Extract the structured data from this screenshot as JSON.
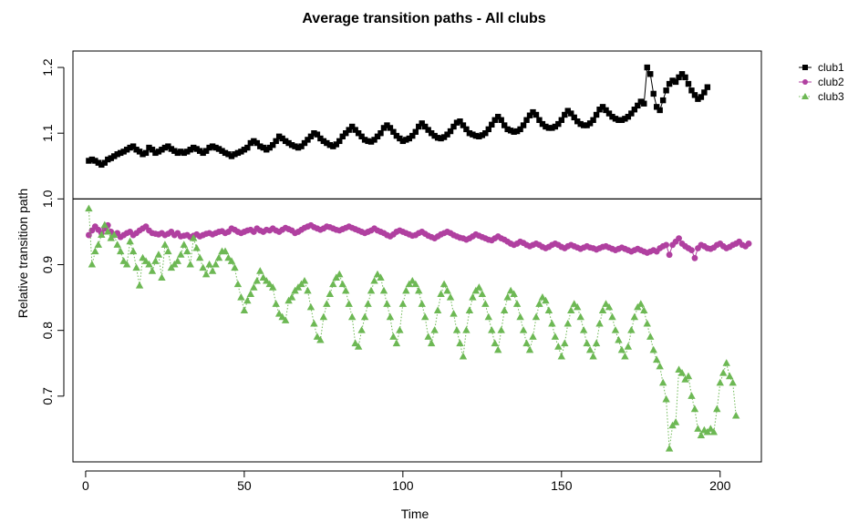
{
  "chart_data": {
    "type": "line",
    "title": "Average transition paths - All clubs",
    "xlabel": "Time",
    "ylabel": "Relative transition path",
    "xlim": [
      -4,
      213
    ],
    "ylim": [
      0.6,
      1.225
    ],
    "x_ticks": [
      0,
      50,
      100,
      150,
      200
    ],
    "y_ticks": [
      0.7,
      0.8,
      0.9,
      1.0,
      1.1,
      1.2
    ],
    "x_tick_labels": [
      "0",
      "50",
      "100",
      "150",
      "200"
    ],
    "y_tick_labels": [
      "0.7",
      "0.8",
      "0.9",
      "1.0",
      "1.1",
      "1.2"
    ],
    "reference_line": 1.0,
    "grid": false,
    "legend_position": "top-right",
    "series": [
      {
        "name": "club1",
        "color": "#000000",
        "marker": "square",
        "x_start": 1,
        "x_step": 1,
        "values": [
          1.058,
          1.06,
          1.058,
          1.055,
          1.052,
          1.055,
          1.06,
          1.062,
          1.065,
          1.068,
          1.07,
          1.072,
          1.075,
          1.078,
          1.08,
          1.075,
          1.072,
          1.068,
          1.07,
          1.078,
          1.075,
          1.07,
          1.072,
          1.075,
          1.078,
          1.08,
          1.076,
          1.073,
          1.07,
          1.072,
          1.07,
          1.072,
          1.075,
          1.078,
          1.076,
          1.073,
          1.07,
          1.073,
          1.078,
          1.08,
          1.078,
          1.076,
          1.073,
          1.07,
          1.068,
          1.065,
          1.068,
          1.07,
          1.072,
          1.075,
          1.078,
          1.085,
          1.088,
          1.085,
          1.08,
          1.078,
          1.075,
          1.078,
          1.082,
          1.088,
          1.095,
          1.092,
          1.088,
          1.085,
          1.082,
          1.08,
          1.078,
          1.08,
          1.085,
          1.09,
          1.095,
          1.1,
          1.098,
          1.092,
          1.088,
          1.085,
          1.082,
          1.08,
          1.083,
          1.088,
          1.095,
          1.1,
          1.105,
          1.11,
          1.105,
          1.1,
          1.095,
          1.09,
          1.088,
          1.087,
          1.09,
          1.095,
          1.1,
          1.108,
          1.112,
          1.108,
          1.102,
          1.096,
          1.092,
          1.088,
          1.09,
          1.092,
          1.096,
          1.102,
          1.11,
          1.115,
          1.11,
          1.105,
          1.1,
          1.096,
          1.093,
          1.092,
          1.094,
          1.098,
          1.103,
          1.11,
          1.116,
          1.118,
          1.112,
          1.106,
          1.1,
          1.098,
          1.096,
          1.095,
          1.097,
          1.1,
          1.106,
          1.113,
          1.12,
          1.125,
          1.12,
          1.112,
          1.106,
          1.104,
          1.102,
          1.103,
          1.106,
          1.112,
          1.12,
          1.127,
          1.132,
          1.128,
          1.12,
          1.114,
          1.11,
          1.108,
          1.108,
          1.11,
          1.114,
          1.12,
          1.128,
          1.134,
          1.13,
          1.124,
          1.118,
          1.114,
          1.112,
          1.112,
          1.115,
          1.12,
          1.128,
          1.136,
          1.14,
          1.135,
          1.13,
          1.125,
          1.122,
          1.12,
          1.12,
          1.122,
          1.125,
          1.13,
          1.136,
          1.142,
          1.148,
          1.145,
          1.2,
          1.19,
          1.16,
          1.14,
          1.135,
          1.15,
          1.165,
          1.175,
          1.18,
          1.178,
          1.185,
          1.19,
          1.185,
          1.175,
          1.165,
          1.158,
          1.152,
          1.155,
          1.162,
          1.17
        ]
      },
      {
        "name": "club2",
        "color": "#b040a0",
        "marker": "circle",
        "x_start": 1,
        "x_step": 1,
        "values": [
          0.945,
          0.952,
          0.958,
          0.953,
          0.948,
          0.955,
          0.96,
          0.95,
          0.945,
          0.948,
          0.942,
          0.945,
          0.948,
          0.95,
          0.945,
          0.948,
          0.952,
          0.955,
          0.958,
          0.952,
          0.948,
          0.947,
          0.946,
          0.948,
          0.945,
          0.947,
          0.95,
          0.945,
          0.948,
          0.943,
          0.944,
          0.945,
          0.942,
          0.944,
          0.946,
          0.943,
          0.945,
          0.947,
          0.948,
          0.946,
          0.948,
          0.95,
          0.951,
          0.948,
          0.95,
          0.955,
          0.953,
          0.95,
          0.948,
          0.95,
          0.952,
          0.953,
          0.95,
          0.955,
          0.952,
          0.95,
          0.953,
          0.952,
          0.955,
          0.952,
          0.95,
          0.953,
          0.956,
          0.954,
          0.952,
          0.948,
          0.95,
          0.953,
          0.956,
          0.958,
          0.96,
          0.957,
          0.955,
          0.953,
          0.955,
          0.958,
          0.957,
          0.955,
          0.953,
          0.952,
          0.954,
          0.956,
          0.958,
          0.956,
          0.954,
          0.952,
          0.95,
          0.948,
          0.95,
          0.952,
          0.955,
          0.952,
          0.95,
          0.948,
          0.945,
          0.943,
          0.946,
          0.95,
          0.952,
          0.95,
          0.948,
          0.946,
          0.944,
          0.945,
          0.948,
          0.95,
          0.947,
          0.944,
          0.942,
          0.94,
          0.943,
          0.946,
          0.948,
          0.95,
          0.948,
          0.945,
          0.943,
          0.941,
          0.94,
          0.938,
          0.94,
          0.943,
          0.946,
          0.944,
          0.942,
          0.94,
          0.938,
          0.937,
          0.94,
          0.943,
          0.94,
          0.938,
          0.935,
          0.932,
          0.93,
          0.932,
          0.935,
          0.933,
          0.93,
          0.928,
          0.93,
          0.932,
          0.93,
          0.927,
          0.925,
          0.927,
          0.93,
          0.932,
          0.93,
          0.927,
          0.925,
          0.928,
          0.93,
          0.928,
          0.926,
          0.924,
          0.926,
          0.928,
          0.926,
          0.925,
          0.923,
          0.925,
          0.927,
          0.928,
          0.926,
          0.924,
          0.922,
          0.924,
          0.926,
          0.924,
          0.922,
          0.92,
          0.922,
          0.924,
          0.922,
          0.92,
          0.918,
          0.92,
          0.922,
          0.92,
          0.925,
          0.928,
          0.93,
          0.915,
          0.93,
          0.935,
          0.94,
          0.932,
          0.928,
          0.925,
          0.922,
          0.91,
          0.925,
          0.93,
          0.928,
          0.925,
          0.924,
          0.926,
          0.93,
          0.932,
          0.928,
          0.925,
          0.927,
          0.93,
          0.932,
          0.935,
          0.93,
          0.928,
          0.932
        ]
      },
      {
        "name": "club3",
        "color": "#6db854",
        "marker": "triangle",
        "line_style": "dotted",
        "x_start": 1,
        "x_step": 1,
        "values": [
          0.985,
          0.9,
          0.92,
          0.93,
          0.945,
          0.96,
          0.95,
          0.94,
          0.945,
          0.93,
          0.92,
          0.905,
          0.9,
          0.935,
          0.92,
          0.895,
          0.868,
          0.91,
          0.905,
          0.9,
          0.89,
          0.905,
          0.915,
          0.88,
          0.93,
          0.92,
          0.895,
          0.9,
          0.905,
          0.915,
          0.93,
          0.92,
          0.9,
          0.94,
          0.925,
          0.91,
          0.895,
          0.885,
          0.9,
          0.89,
          0.9,
          0.91,
          0.92,
          0.92,
          0.91,
          0.905,
          0.895,
          0.87,
          0.85,
          0.83,
          0.845,
          0.855,
          0.865,
          0.875,
          0.89,
          0.88,
          0.875,
          0.87,
          0.865,
          0.84,
          0.825,
          0.82,
          0.815,
          0.845,
          0.85,
          0.86,
          0.865,
          0.87,
          0.875,
          0.86,
          0.835,
          0.81,
          0.79,
          0.785,
          0.82,
          0.84,
          0.855,
          0.87,
          0.88,
          0.885,
          0.87,
          0.86,
          0.84,
          0.82,
          0.78,
          0.775,
          0.8,
          0.82,
          0.84,
          0.86,
          0.875,
          0.885,
          0.88,
          0.86,
          0.84,
          0.82,
          0.79,
          0.78,
          0.8,
          0.84,
          0.86,
          0.87,
          0.875,
          0.87,
          0.86,
          0.84,
          0.82,
          0.79,
          0.78,
          0.8,
          0.83,
          0.855,
          0.87,
          0.86,
          0.85,
          0.825,
          0.8,
          0.78,
          0.76,
          0.8,
          0.83,
          0.85,
          0.86,
          0.865,
          0.855,
          0.84,
          0.82,
          0.8,
          0.78,
          0.77,
          0.8,
          0.83,
          0.85,
          0.86,
          0.855,
          0.84,
          0.82,
          0.8,
          0.78,
          0.77,
          0.79,
          0.82,
          0.84,
          0.85,
          0.845,
          0.83,
          0.81,
          0.79,
          0.775,
          0.76,
          0.78,
          0.81,
          0.83,
          0.84,
          0.835,
          0.82,
          0.8,
          0.78,
          0.77,
          0.76,
          0.78,
          0.81,
          0.83,
          0.84,
          0.835,
          0.82,
          0.8,
          0.785,
          0.77,
          0.76,
          0.775,
          0.8,
          0.82,
          0.835,
          0.84,
          0.83,
          0.81,
          0.79,
          0.77,
          0.755,
          0.745,
          0.72,
          0.695,
          0.62,
          0.655,
          0.66,
          0.74,
          0.735,
          0.725,
          0.73,
          0.7,
          0.68,
          0.65,
          0.64,
          0.648,
          0.645,
          0.65,
          0.645,
          0.68,
          0.72,
          0.735,
          0.75,
          0.73,
          0.72,
          0.67
        ]
      }
    ]
  }
}
